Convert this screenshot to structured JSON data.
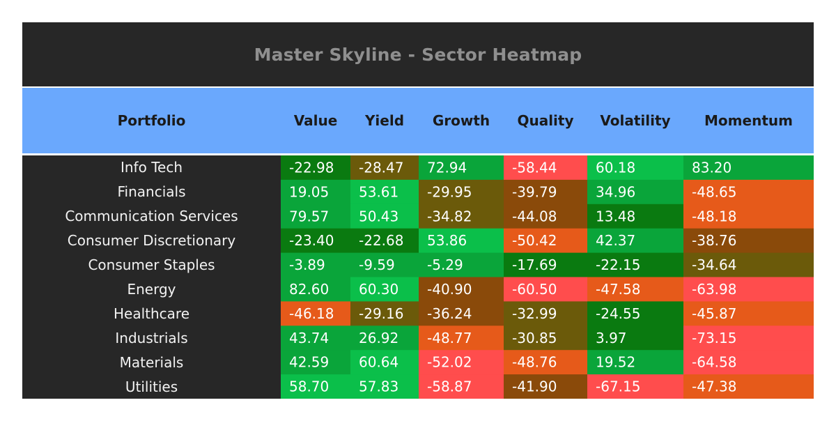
{
  "title": "Master Skyline - Sector Heatmap",
  "header": {
    "portfolio": "Portfolio",
    "columns": [
      "Value",
      "Yield",
      "Growth",
      "Quality",
      "Volatility",
      "Momentum"
    ]
  },
  "chart_data": {
    "type": "heatmap",
    "title": "Master Skyline - Sector Heatmap",
    "row_header": "Portfolio",
    "columns": [
      "Value",
      "Yield",
      "Growth",
      "Quality",
      "Volatility",
      "Momentum"
    ],
    "rows": [
      "Info Tech",
      "Financials",
      "Communication Services",
      "Consumer Discretionary",
      "Consumer Staples",
      "Energy",
      "Healthcare",
      "Industrials",
      "Materials",
      "Utilities"
    ],
    "values": [
      [
        -22.98,
        -28.47,
        72.94,
        -58.44,
        60.18,
        83.2
      ],
      [
        19.05,
        53.61,
        -29.95,
        -39.79,
        34.96,
        -48.65
      ],
      [
        79.57,
        50.43,
        -34.82,
        -44.08,
        13.48,
        -48.18
      ],
      [
        -23.4,
        -22.68,
        53.86,
        -50.42,
        42.37,
        -38.76
      ],
      [
        -3.89,
        -9.59,
        -5.29,
        -17.69,
        -22.15,
        -34.64
      ],
      [
        82.6,
        60.3,
        -40.9,
        -60.5,
        -47.58,
        -63.98
      ],
      [
        -46.18,
        -29.16,
        -36.24,
        -32.99,
        -24.55,
        -45.87
      ],
      [
        43.74,
        26.92,
        -48.77,
        -30.85,
        3.97,
        -73.15
      ],
      [
        42.59,
        60.64,
        -52.02,
        -48.76,
        19.52,
        -64.58
      ],
      [
        58.7,
        57.83,
        -58.87,
        -41.9,
        -67.15,
        -47.38
      ]
    ],
    "colors": {
      "dark_green": "#0a7a10",
      "green": "#0aa53a",
      "bright_green": "#0bbf4a",
      "olive": "#6b5a0a",
      "brown": "#8a4a0a",
      "orange": "#e65a1a",
      "red": "#ff4d4d"
    }
  }
}
